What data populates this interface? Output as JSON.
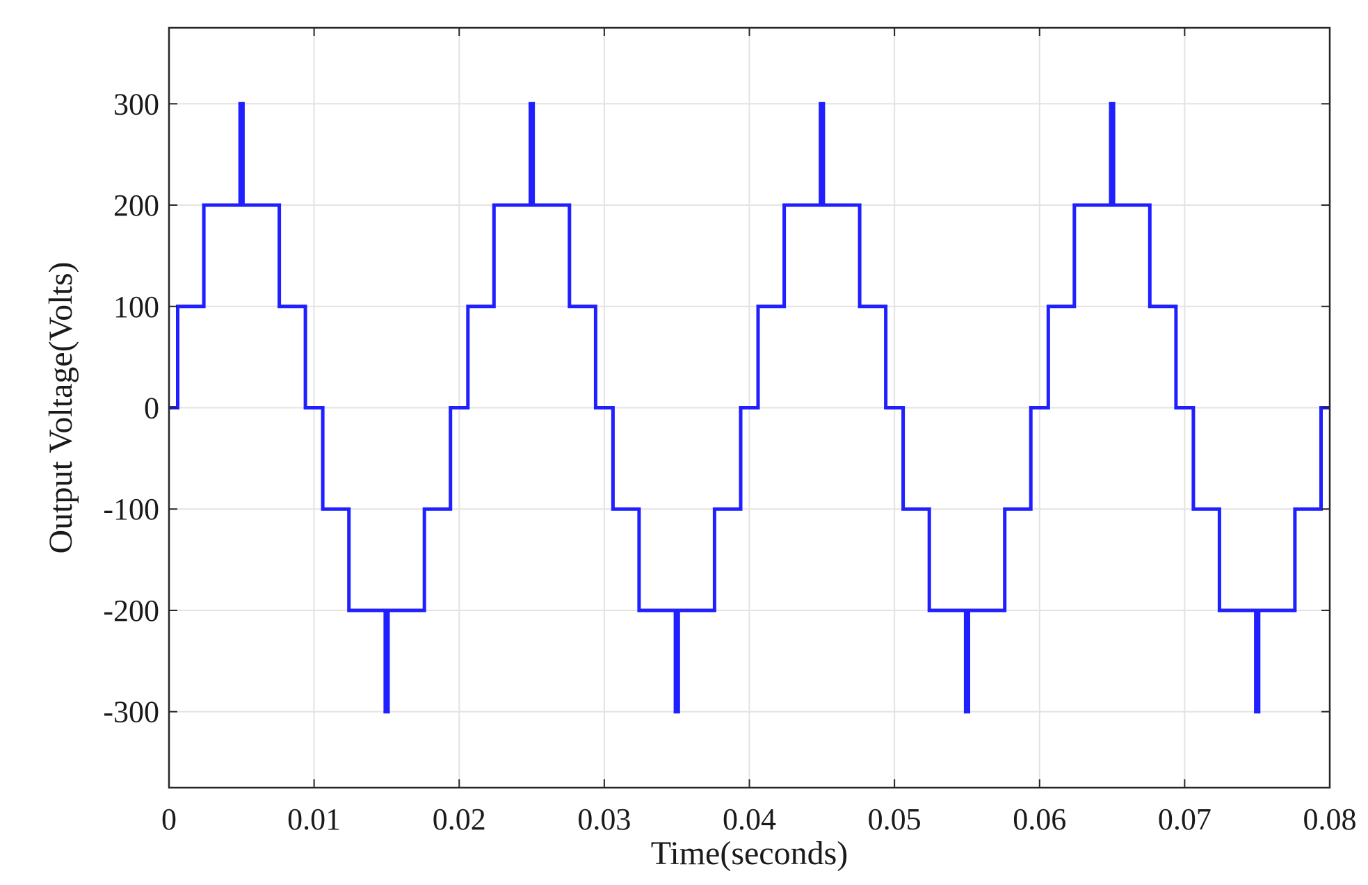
{
  "chart_data": {
    "type": "line",
    "title": "",
    "xlabel": "Time(seconds)",
    "ylabel": "Output Voltage(Volts)",
    "xlim": [
      0,
      0.08
    ],
    "ylim": [
      -375,
      375
    ],
    "grid": true,
    "legend": "none",
    "x_ticks": [
      0,
      0.01,
      0.02,
      0.03,
      0.04,
      0.05,
      0.06,
      0.07,
      0.08
    ],
    "x_tick_labels": [
      "0",
      "0.01",
      "0.02",
      "0.03",
      "0.04",
      "0.05",
      "0.06",
      "0.07",
      "0.08"
    ],
    "y_ticks": [
      300,
      200,
      100,
      0,
      -100,
      -200,
      -300
    ],
    "y_tick_labels": [
      "300",
      "200",
      "100",
      "0",
      "-100",
      "-200",
      "-300"
    ],
    "series": [
      {
        "color": "#1f1fff",
        "x": [
          0,
          0.0006,
          0.0006,
          0.0024,
          0.0024,
          0.0049,
          0.0049,
          0.0051,
          0.0051,
          0.0076,
          0.0076,
          0.0094,
          0.0094,
          0.0106,
          0.0106,
          0.0124,
          0.0124,
          0.0149,
          0.0149,
          0.0151,
          0.0151,
          0.0176,
          0.0176,
          0.0194,
          0.0194,
          0.0206,
          0.0206,
          0.0224,
          0.0224,
          0.0249,
          0.0249,
          0.0251,
          0.0251,
          0.0276,
          0.0276,
          0.0294,
          0.0294,
          0.0306,
          0.0306,
          0.0324,
          0.0324,
          0.0349,
          0.0349,
          0.0351,
          0.0351,
          0.0376,
          0.0376,
          0.0394,
          0.0394,
          0.0406,
          0.0406,
          0.0424,
          0.0424,
          0.0449,
          0.0449,
          0.0451,
          0.0451,
          0.0476,
          0.0476,
          0.0494,
          0.0494,
          0.0506,
          0.0506,
          0.0524,
          0.0524,
          0.0549,
          0.0549,
          0.0551,
          0.0551,
          0.0576,
          0.0576,
          0.0594,
          0.0594,
          0.0606,
          0.0606,
          0.0624,
          0.0624,
          0.0649,
          0.0649,
          0.0651,
          0.0651,
          0.0676,
          0.0676,
          0.0694,
          0.0694,
          0.0706,
          0.0706,
          0.0724,
          0.0724,
          0.0749,
          0.0749,
          0.0751,
          0.0751,
          0.0776,
          0.0776,
          0.0794,
          0.0794,
          0.08
        ],
        "y": [
          0,
          0,
          100,
          100,
          200,
          200,
          300,
          300,
          200,
          200,
          100,
          100,
          0,
          0,
          -100,
          -100,
          -200,
          -200,
          -300,
          -300,
          -200,
          -200,
          -100,
          -100,
          0,
          0,
          100,
          100,
          200,
          200,
          300,
          300,
          200,
          200,
          100,
          100,
          0,
          0,
          -100,
          -100,
          -200,
          -200,
          -300,
          -300,
          -200,
          -200,
          -100,
          -100,
          0,
          0,
          100,
          100,
          200,
          200,
          300,
          300,
          200,
          200,
          100,
          100,
          0,
          0,
          -100,
          -100,
          -200,
          -200,
          -300,
          -300,
          -200,
          -200,
          -100,
          -100,
          0,
          0,
          100,
          100,
          200,
          200,
          300,
          300,
          200,
          200,
          100,
          100,
          0,
          0,
          -100,
          -100,
          -200,
          -200,
          -300,
          -300,
          -200,
          -200,
          -100,
          -100,
          0,
          0
        ]
      }
    ]
  }
}
